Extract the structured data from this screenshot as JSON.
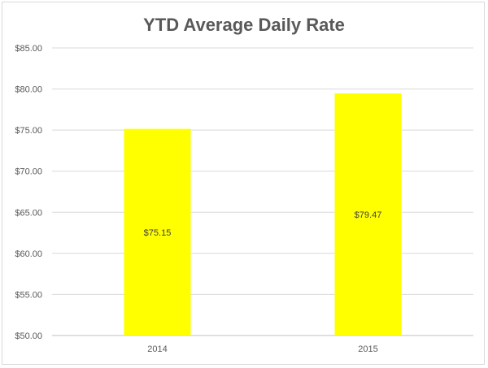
{
  "chart_data": {
    "type": "bar",
    "title": "YTD Average Daily Rate",
    "categories": [
      "2014",
      "2015"
    ],
    "values": [
      75.15,
      79.47
    ],
    "data_labels": [
      "$75.15",
      "$79.47"
    ],
    "ylim": [
      50,
      85
    ],
    "yticks": [
      50,
      55,
      60,
      65,
      70,
      75,
      80,
      85
    ],
    "ytick_labels": [
      "$50.00",
      "$55.00",
      "$60.00",
      "$65.00",
      "$70.00",
      "$75.00",
      "$80.00",
      "$85.00"
    ],
    "xlabel": "",
    "ylabel": "",
    "grid": true,
    "legend": "none",
    "bar_color": "#ffff00"
  }
}
